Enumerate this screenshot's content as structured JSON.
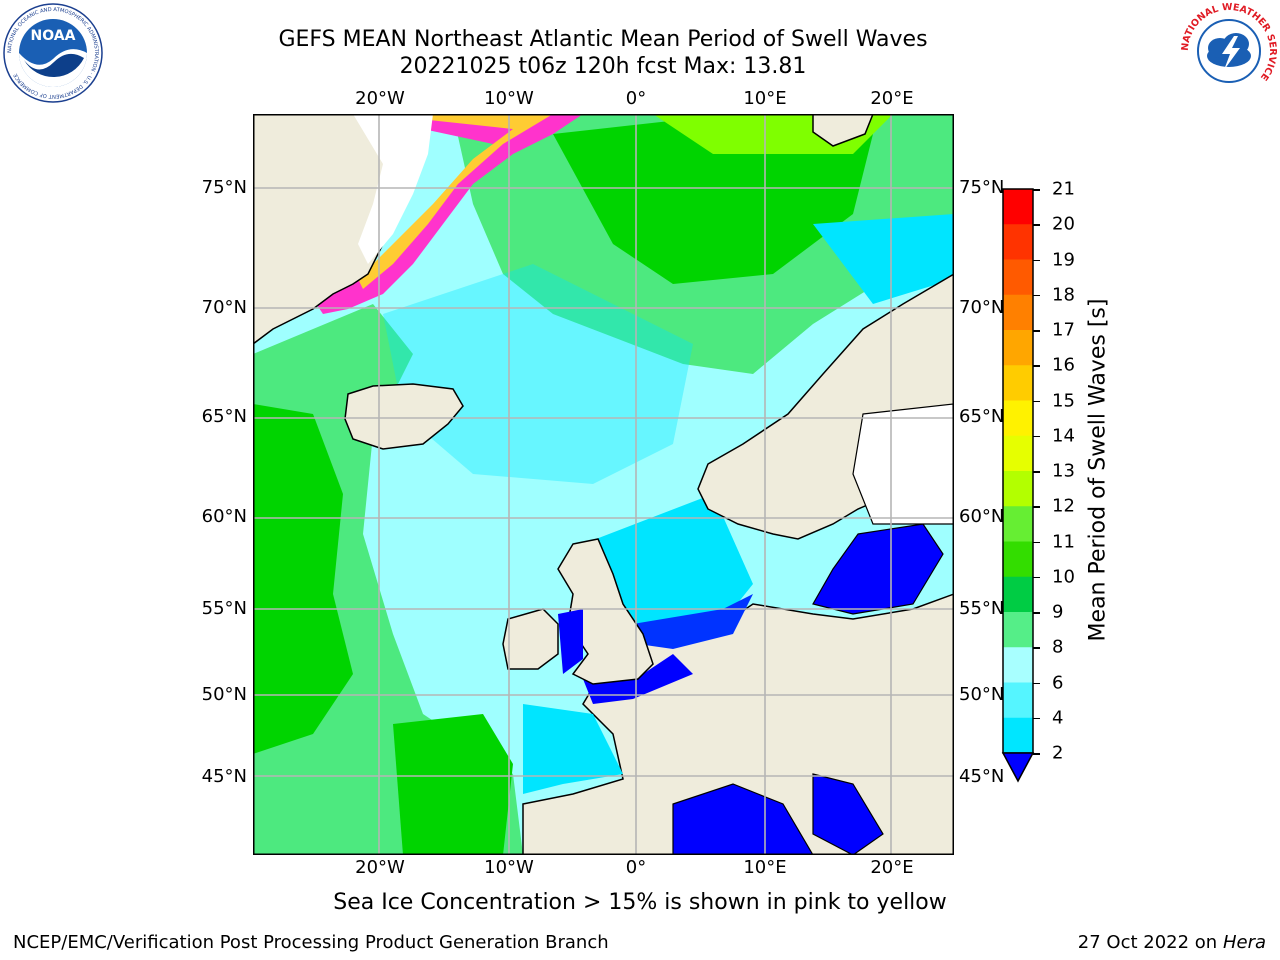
{
  "title": {
    "line1": "GEFS MEAN Northeast Atlantic Mean Period of Swell Waves",
    "line2": "20221025 t06z 120h fcst   Max: 13.81"
  },
  "map": {
    "lon_ticks_top": [
      "20°W",
      "10°W",
      "0°",
      "10°E",
      "20°E"
    ],
    "lon_ticks_bottom": [
      "20°W",
      "10°W",
      "0°",
      "10°E",
      "20°E"
    ],
    "lat_ticks_left": [
      "75°N",
      "70°N",
      "65°N",
      "60°N",
      "55°N",
      "50°N",
      "45°N"
    ],
    "lat_ticks_right": [
      "75°N",
      "70°N",
      "65°N",
      "60°N",
      "55°N",
      "50°N",
      "45°N"
    ],
    "ocean_colors": {
      "low": "#0000ff",
      "mid_low": "#00e5ff",
      "mid": "#9fffff",
      "mid_high": "#4de97f",
      "high": "#00d400",
      "very_high": "#7fff00",
      "ice_pink": "#ff33cc",
      "ice_yellow": "#ffcc33",
      "land": "#efecdc"
    }
  },
  "colorbar": {
    "title": "Mean Period of Swell Waves [s]",
    "labels": [
      "21",
      "20",
      "19",
      "18",
      "17",
      "16",
      "15",
      "14",
      "13",
      "12",
      "11",
      "10",
      "9",
      "8",
      "6",
      "4",
      "2"
    ],
    "colors": [
      "#ff0000",
      "#ff3300",
      "#ff5a00",
      "#ff8000",
      "#ffa600",
      "#ffcc00",
      "#fff200",
      "#e6ff00",
      "#b3ff00",
      "#66ee33",
      "#33dd00",
      "#00cc44",
      "#55ee88",
      "#a8ffff",
      "#55f5ff",
      "#00e6ff",
      "#0080ff",
      "#0000ff"
    ]
  },
  "footnote": "Sea Ice Concentration > 15% is shown in pink to yellow",
  "credits": {
    "left": "NCEP/EMC/Verification Post Processing Product Generation Branch",
    "right_date": "27 Oct 2022 on ",
    "right_host": "Hera"
  },
  "logos": {
    "noaa": "NOAA",
    "nws": "NATIONAL WEATHER SERVICE",
    "noaa_ring": "NATIONAL OCEANIC AND ATMOSPHERIC ADMINISTRATION · U.S. DEPARTMENT OF COMMERCE"
  }
}
